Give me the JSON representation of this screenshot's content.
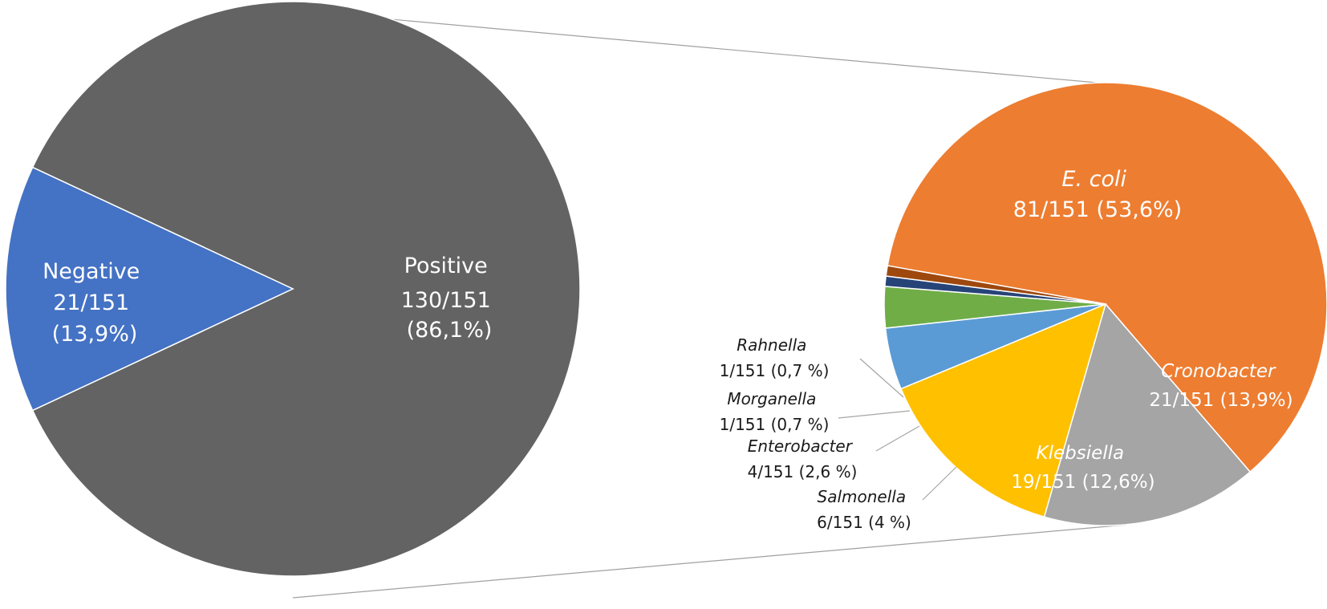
{
  "chart_data": [
    {
      "type": "pie",
      "title": "",
      "slices": [
        {
          "name": "Positive",
          "value": 130,
          "label_line1": "Positive",
          "label_line2": "130/151",
          "label_line3": "(86,1%)",
          "color": "#636363"
        },
        {
          "name": "Negative",
          "value": 21,
          "label_line1": "Negative",
          "label_line2": "21/151",
          "label_line3": "(13,9%)",
          "color": "#4472c4"
        }
      ]
    },
    {
      "type": "pie",
      "title": "",
      "slices": [
        {
          "name": "E. coli",
          "value": 81,
          "label_name": "E. coli",
          "label_value": "81/151 (53,6%)",
          "color": "#ed7d31"
        },
        {
          "name": "Cronobacter",
          "value": 21,
          "label_name": "Cronobacter",
          "label_value": "21/151 (13,9%)",
          "color": "#a5a5a5"
        },
        {
          "name": "Klebsiella",
          "value": 19,
          "label_name": "Klebsiella",
          "label_value": "19/151 (12,6%)",
          "color": "#ffc000"
        },
        {
          "name": "Salmonella",
          "value": 6,
          "label_name": "Salmonella",
          "label_value": "6/151 (4 %)",
          "color": "#5b9bd5"
        },
        {
          "name": "Enterobacter",
          "value": 4,
          "label_name": "Enterobacter",
          "label_value": "4/151 (2,6 %)",
          "color": "#70ad47"
        },
        {
          "name": "Morganella",
          "value": 1,
          "label_name": "Morganella",
          "label_value": "1/151 (0,7 %)",
          "color": "#264478"
        },
        {
          "name": "Rahnella",
          "value": 1,
          "label_name": "Rahnella",
          "label_value": "1/151 (0,7 %)",
          "color": "#9e480e"
        }
      ]
    }
  ]
}
